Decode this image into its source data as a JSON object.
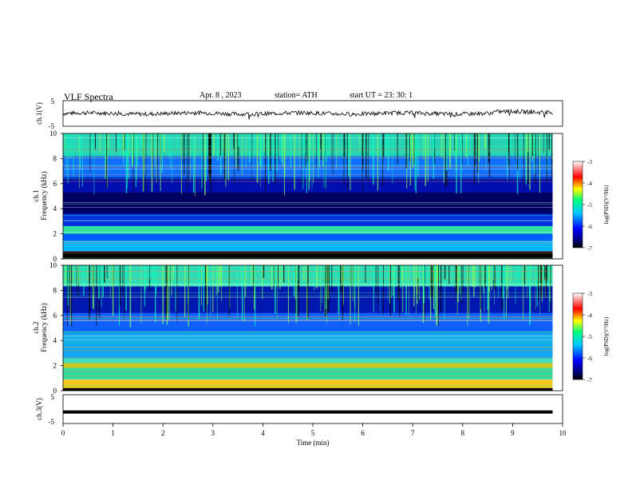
{
  "header": {
    "title": "VLF  Spectra",
    "date": "Apr. 8  , 2023",
    "station": "station= ATH",
    "start": "start  UT  =    23: 30: 1"
  },
  "chart_data": [
    {
      "type": "line",
      "id": "ch1_waveform",
      "ylabel": "ch.1(V)",
      "ylim": [
        -5,
        5
      ],
      "y_ticks": [
        "5",
        "-5"
      ],
      "xlim": [
        0,
        10
      ],
      "x_unit": "min",
      "series": [
        {
          "values_desc": "noisy waveform near 0 V",
          "x_end": 9.8
        }
      ]
    },
    {
      "type": "heatmap",
      "id": "ch1_spectrogram",
      "ylabel": "ch.1\nFrequency (kHz)",
      "ylabel_lines": [
        "ch.1",
        "Frequency  (kHz)"
      ],
      "ylim": [
        0,
        10
      ],
      "y_ticks": [
        "0",
        "2",
        "4",
        "6",
        "8",
        "10"
      ],
      "xlim": [
        0,
        10
      ],
      "x_end": 9.8,
      "colorbar": {
        "label": "log(PSD)(V²/Hz)",
        "range": [
          -7,
          -3
        ],
        "ticks": [
          "-3",
          "-4",
          "-5",
          "-6",
          "-7"
        ]
      }
    },
    {
      "type": "heatmap",
      "id": "ch2_spectrogram",
      "ylabel_lines": [
        "ch.2",
        "Frequency  (kHz)"
      ],
      "ylim": [
        0,
        10
      ],
      "y_ticks": [
        "0",
        "2",
        "4",
        "6",
        "8",
        "10"
      ],
      "xlim": [
        0,
        10
      ],
      "x_end": 9.8,
      "colorbar": {
        "label": "log(PSD)(V²/Hz)",
        "range": [
          -7,
          -3
        ],
        "ticks": [
          "-3",
          "-4",
          "-5",
          "-6",
          "-7"
        ]
      }
    },
    {
      "type": "line",
      "id": "ch3_waveform",
      "ylabel": "ch.3(V)",
      "ylim": [
        -5,
        5
      ],
      "y_ticks": [
        "5",
        "-5"
      ],
      "xlim": [
        0,
        10
      ],
      "series": [
        {
          "values_desc": "flat trace near -1 V",
          "level": -1,
          "x_end": 9.8
        }
      ]
    }
  ],
  "x_axis": {
    "label": "Time  (min)",
    "ticks": [
      "0",
      "1",
      "2",
      "3",
      "4",
      "5",
      "6",
      "7",
      "8",
      "9",
      "10"
    ]
  },
  "colors": {
    "trace": "#000000",
    "colormap": [
      "#000000",
      "#000060",
      "#0000ff",
      "#00c8ff",
      "#00ff80",
      "#ffff00",
      "#ff0000",
      "#ffffff"
    ]
  }
}
